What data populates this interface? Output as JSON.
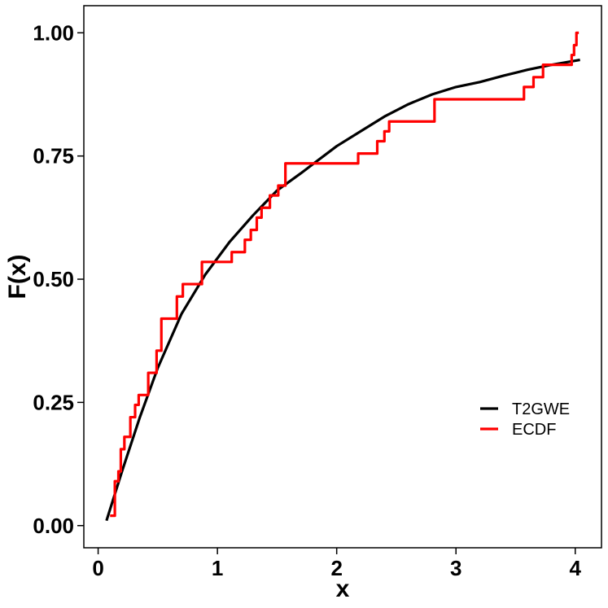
{
  "chart_data": {
    "type": "line",
    "xlabel": "x",
    "ylabel": "F(x)",
    "xlim": [
      -0.12,
      4.22
    ],
    "ylim": [
      -0.045,
      1.055
    ],
    "x_ticks": [
      0,
      1,
      2,
      3,
      4
    ],
    "x_tick_labels": [
      "0",
      "1",
      "2",
      "3",
      "4"
    ],
    "y_ticks": [
      0,
      0.25,
      0.5,
      0.75,
      1.0
    ],
    "y_tick_labels": [
      "0.00",
      "0.25",
      "0.50",
      "0.75",
      "1.00"
    ],
    "grid": false,
    "legend_position": "bottom-right",
    "series": [
      {
        "name": "T2GWE",
        "kind": "curve",
        "color": "#000000",
        "x": [
          0.07,
          0.2,
          0.35,
          0.5,
          0.7,
          0.9,
          1.1,
          1.3,
          1.5,
          1.7,
          2.0,
          2.2,
          2.4,
          2.6,
          2.8,
          3.0,
          3.2,
          3.4,
          3.6,
          3.8,
          4.04
        ],
        "y": [
          0.01,
          0.11,
          0.22,
          0.32,
          0.43,
          0.51,
          0.575,
          0.63,
          0.68,
          0.715,
          0.77,
          0.8,
          0.83,
          0.855,
          0.875,
          0.89,
          0.9,
          0.913,
          0.925,
          0.935,
          0.945
        ]
      },
      {
        "name": "ECDF",
        "kind": "step",
        "color": "#ff0000",
        "x": [
          0.1,
          0.14,
          0.17,
          0.19,
          0.22,
          0.27,
          0.31,
          0.34,
          0.42,
          0.49,
          0.53,
          0.55,
          0.66,
          0.71,
          0.87,
          1.12,
          1.23,
          1.28,
          1.33,
          1.37,
          1.44,
          1.51,
          1.57,
          1.6,
          2.18,
          2.34,
          2.4,
          2.44,
          2.82,
          3.57,
          3.65,
          3.73,
          3.97,
          3.99,
          4.01,
          4.03
        ],
        "y": [
          0.02,
          0.09,
          0.11,
          0.155,
          0.18,
          0.22,
          0.245,
          0.265,
          0.31,
          0.355,
          0.42,
          0.42,
          0.465,
          0.49,
          0.535,
          0.555,
          0.58,
          0.6,
          0.625,
          0.645,
          0.67,
          0.69,
          0.735,
          0.735,
          0.755,
          0.78,
          0.8,
          0.82,
          0.865,
          0.89,
          0.91,
          0.935,
          0.955,
          0.975,
          1.0,
          1.0
        ],
        "x_end": 4.03
      }
    ]
  }
}
